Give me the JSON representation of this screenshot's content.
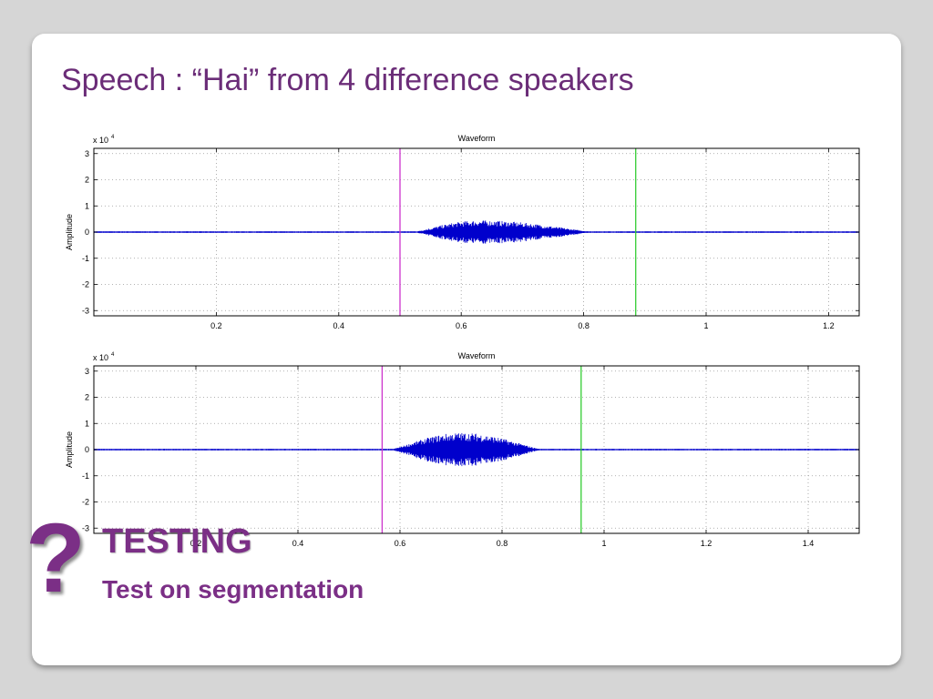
{
  "slide": {
    "title": "Speech : “Hai” from 4 difference speakers"
  },
  "footer": {
    "icon": "question-mark-icon",
    "icon_glyph": "?",
    "heading": "TESTING",
    "subheading": "Test on segmentation"
  },
  "colors": {
    "title": "#6b2d78",
    "accent": "#7b2f86",
    "waveform": "#0000cc",
    "marker_start": "#cc33cc",
    "marker_end": "#33cc33"
  },
  "chart_data": [
    {
      "type": "line",
      "title": "Waveform",
      "ylabel": "Amplitude",
      "xlabel": "",
      "y_exponent_label": "x 10",
      "y_exponent_power": "4",
      "xlim": [
        0,
        1.25
      ],
      "ylim": [
        -3.2,
        3.2
      ],
      "xticks": [
        0.2,
        0.4,
        0.6,
        0.8,
        1,
        1.2
      ],
      "xtick_labels": [
        "0.2",
        "0.4",
        "0.6",
        "0.8",
        "1",
        "1.2"
      ],
      "yticks": [
        3,
        2,
        1,
        0,
        -1,
        -2,
        -3
      ],
      "ytick_labels": [
        "3",
        "2",
        "1",
        "0",
        "-1",
        "-2",
        "-3"
      ],
      "grid": true,
      "speech_segment": {
        "start": 0.52,
        "end": 0.82,
        "peak_amplitude": 0.45,
        "peak_time": 0.63
      },
      "markers": [
        {
          "name": "start",
          "x": 0.5,
          "color": "#cc33cc"
        },
        {
          "name": "end",
          "x": 0.885,
          "color": "#33cc33"
        }
      ]
    },
    {
      "type": "line",
      "title": "Waveform",
      "ylabel": "Amplitude",
      "xlabel": "",
      "y_exponent_label": "x 10",
      "y_exponent_power": "4",
      "xlim": [
        0,
        1.5
      ],
      "ylim": [
        -3.2,
        3.2
      ],
      "xticks": [
        0.2,
        0.4,
        0.6,
        0.8,
        1,
        1.2,
        1.4
      ],
      "xtick_labels": [
        "0.2",
        "0.4",
        "0.6",
        "0.8",
        "1",
        "1.2",
        "1.4"
      ],
      "yticks": [
        3,
        2,
        1,
        0,
        -1,
        -2,
        -3
      ],
      "ytick_labels": [
        "3",
        "2",
        "1",
        "0",
        "-1",
        "-2",
        "-3"
      ],
      "grid": true,
      "speech_segment": {
        "start": 0.58,
        "end": 0.88,
        "peak_amplitude": 0.65,
        "peak_time": 0.72
      },
      "markers": [
        {
          "name": "start",
          "x": 0.565,
          "color": "#cc33cc"
        },
        {
          "name": "end",
          "x": 0.955,
          "color": "#33cc33"
        }
      ]
    }
  ]
}
